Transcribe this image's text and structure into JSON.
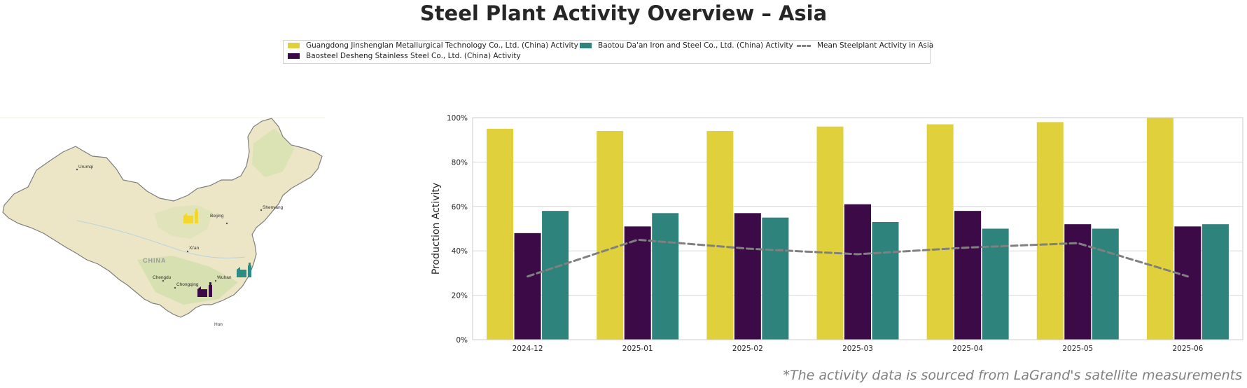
{
  "title": "Steel Plant Activity Overview – Asia",
  "legend": {
    "items": [
      {
        "label": "Guangdong Jinshenglan Metallurgical Technology Co., Ltd. (China) Activity",
        "color": "#e0d03b",
        "kind": "patch"
      },
      {
        "label": "Baosteel Desheng Stainless Steel Co., Ltd. (China) Activity",
        "color": "#3b0a47",
        "kind": "patch"
      },
      {
        "label": "Baotou Da'an Iron and Steel Co., Ltd. (China) Activity",
        "color": "#2e837c",
        "kind": "patch"
      },
      {
        "label": "Mean Steelplant Activity in Asia",
        "color": "#808080",
        "kind": "dashed-line"
      }
    ]
  },
  "map": {
    "country_label": "CHINA",
    "cities": [
      "Urumqi",
      "Beijing",
      "Shenyang",
      "Xi'an",
      "Chengdu",
      "Chongqing",
      "Wuhan",
      "Hon"
    ],
    "plant_markers": [
      {
        "plant": "Guangdong Jinshenglan Metallurgical Technology Co., Ltd.",
        "color": "#f2d82e",
        "icon": "factory-icon"
      },
      {
        "plant": "Baosteel Desheng Stainless Steel Co., Ltd.",
        "color": "#3b0a47",
        "icon": "factory-icon"
      },
      {
        "plant": "Baotou Da'an Iron and Steel Co., Ltd.",
        "color": "#2e8b84",
        "icon": "factory-icon"
      }
    ]
  },
  "chart_data": {
    "type": "bar",
    "categories": [
      "2024-12",
      "2025-01",
      "2025-02",
      "2025-03",
      "2025-04",
      "2025-05",
      "2025-06"
    ],
    "series": [
      {
        "name": "Guangdong Jinshenglan Metallurgical Technology Co., Ltd. (China) Activity",
        "color": "#e0d03b",
        "values": [
          95,
          94,
          94,
          96,
          97,
          98,
          100
        ]
      },
      {
        "name": "Baosteel Desheng Stainless Steel Co., Ltd. (China) Activity",
        "color": "#3b0a47",
        "values": [
          48,
          51,
          57,
          61,
          58,
          52,
          51
        ]
      },
      {
        "name": "Baotou Da'an Iron and Steel Co., Ltd. (China) Activity",
        "color": "#2e837c",
        "values": [
          58,
          57,
          55,
          53,
          50,
          50,
          52
        ]
      }
    ],
    "mean_line": {
      "name": "Mean Steelplant Activity in Asia",
      "color": "#808080",
      "values": [
        28.5,
        45,
        41,
        38.5,
        41.5,
        43.5,
        28.5
      ]
    },
    "ylabel": "Production Activity",
    "xlabel": "",
    "ylim": [
      0,
      100
    ],
    "yticks": [
      "0%",
      "20%",
      "40%",
      "60%",
      "80%",
      "100%"
    ],
    "grid": "horizontal",
    "legend_position": "top-center"
  },
  "source_note": "*The activity data is sourced from LaGrand's satellite measurements"
}
